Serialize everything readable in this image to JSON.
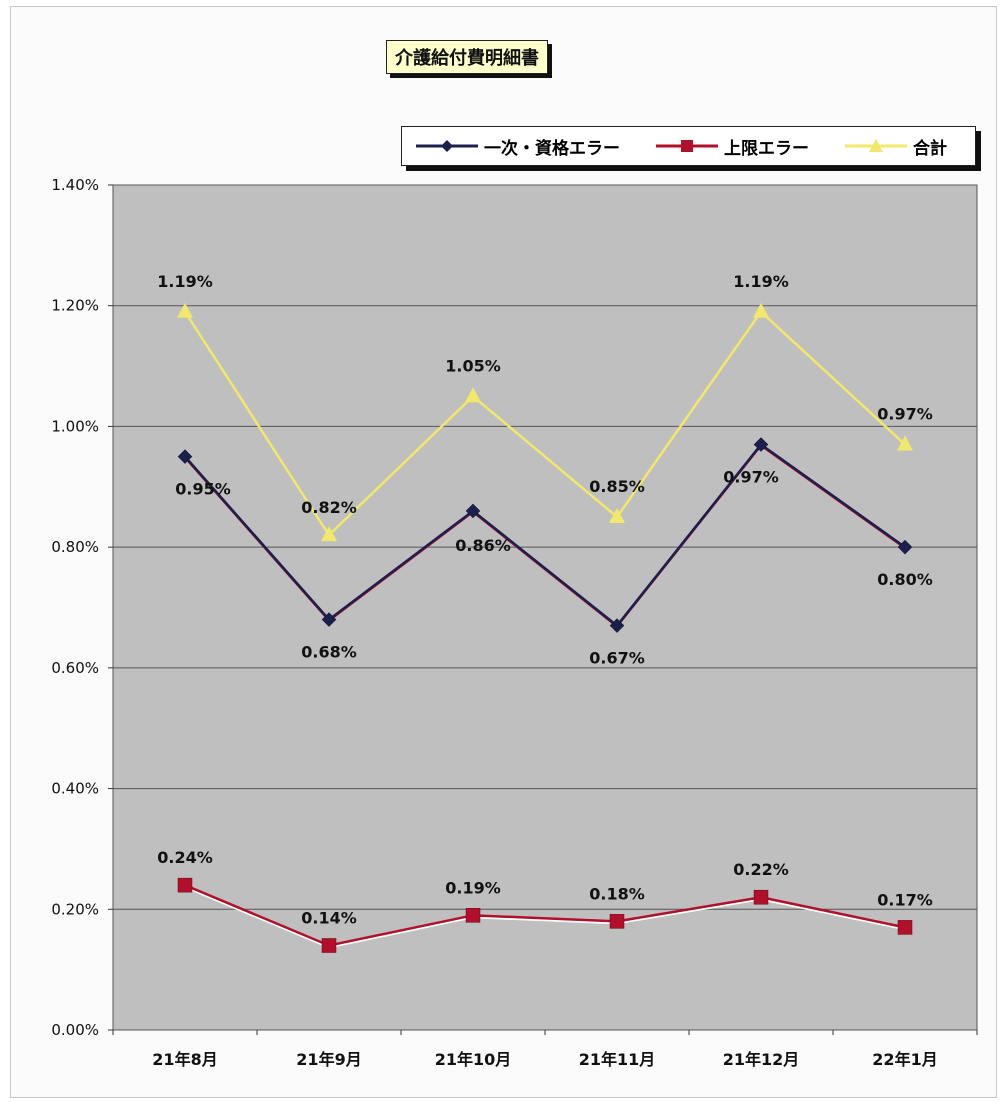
{
  "chart_data": {
    "type": "line",
    "title": "介護給付費明細書",
    "categories": [
      "21年8月",
      "21年9月",
      "21年10月",
      "21年11月",
      "21年12月",
      "22年1月"
    ],
    "ylim": [
      0,
      1.4
    ],
    "yticks": [
      "0.00%",
      "0.20%",
      "0.40%",
      "0.60%",
      "0.80%",
      "1.00%",
      "1.20%",
      "1.40%"
    ],
    "grid": true,
    "legend_position": "top-right",
    "series": [
      {
        "name": "一次・資格エラー",
        "marker": "diamond",
        "color": "#1a1f4e",
        "values": [
          0.95,
          0.68,
          0.86,
          0.67,
          0.97,
          0.8
        ],
        "labels": [
          "0.95%",
          "0.68%",
          "0.86%",
          "0.67%",
          "0.97%",
          "0.80%"
        ]
      },
      {
        "name": "上限エラー",
        "marker": "square",
        "color": "#b0102a",
        "values": [
          0.24,
          0.14,
          0.19,
          0.18,
          0.22,
          0.17
        ],
        "labels": [
          "0.24%",
          "0.14%",
          "0.19%",
          "0.18%",
          "0.22%",
          "0.17%"
        ]
      },
      {
        "name": "合計",
        "marker": "triangle",
        "color": "#f2e86a",
        "values": [
          1.19,
          0.82,
          1.05,
          0.85,
          1.19,
          0.97
        ],
        "labels": [
          "1.19%",
          "0.82%",
          "1.05%",
          "0.85%",
          "1.19%",
          "0.97%"
        ]
      }
    ]
  }
}
